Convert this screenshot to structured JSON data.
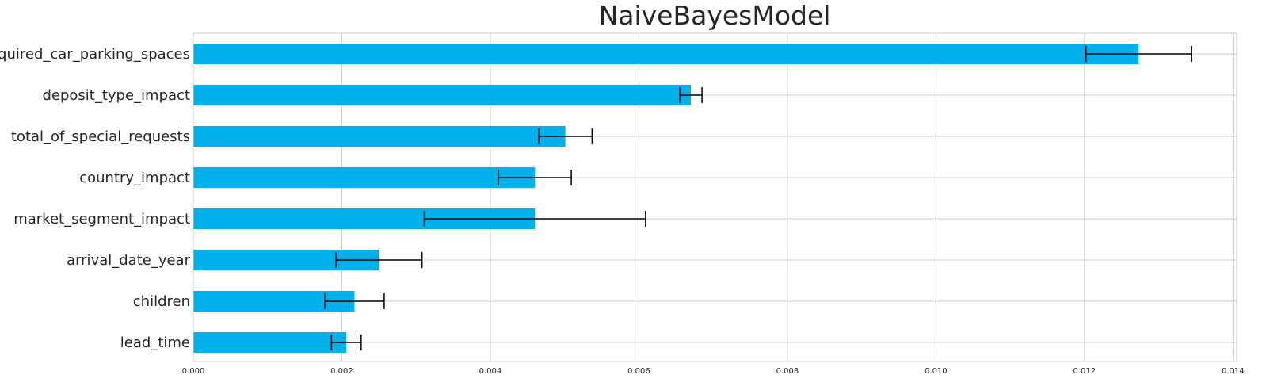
{
  "chart_data": {
    "type": "bar",
    "orientation": "horizontal",
    "title": "NaiveBayesModel",
    "xlabel": "",
    "ylabel": "",
    "categories": [
      "required_car_parking_spaces",
      "deposit_type_impact",
      "total_of_special_requests",
      "country_impact",
      "market_segment_impact",
      "arrival_date_year",
      "children",
      "lead_time"
    ],
    "values": [
      0.01273,
      0.0067,
      0.00501,
      0.0046,
      0.0046,
      0.0025,
      0.00217,
      0.00206
    ],
    "errors": [
      0.00071,
      0.00015,
      0.00036,
      0.00049,
      0.00149,
      0.00058,
      0.0004,
      0.0002
    ],
    "xlim": [
      0.0,
      0.01405
    ],
    "xticks": [
      0.0,
      0.002,
      0.004,
      0.006,
      0.008,
      0.01,
      0.012,
      0.014
    ],
    "xtick_labels": [
      "0.000",
      "0.002",
      "0.004",
      "0.006",
      "0.008",
      "0.010",
      "0.012",
      "0.014"
    ],
    "grid": true,
    "colors": {
      "bar": "#00b0ea",
      "error": "#000000",
      "grid": "#cccccc",
      "text": "#262626"
    }
  }
}
